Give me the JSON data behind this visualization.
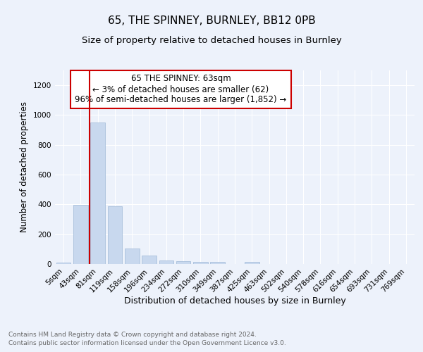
{
  "title1": "65, THE SPINNEY, BURNLEY, BB12 0PB",
  "title2": "Size of property relative to detached houses in Burnley",
  "xlabel": "Distribution of detached houses by size in Burnley",
  "ylabel": "Number of detached properties",
  "categories": [
    "5sqm",
    "43sqm",
    "81sqm",
    "119sqm",
    "158sqm",
    "196sqm",
    "234sqm",
    "272sqm",
    "310sqm",
    "349sqm",
    "387sqm",
    "425sqm",
    "463sqm",
    "502sqm",
    "540sqm",
    "578sqm",
    "616sqm",
    "654sqm",
    "693sqm",
    "731sqm",
    "769sqm"
  ],
  "values": [
    10,
    395,
    950,
    390,
    105,
    55,
    25,
    20,
    12,
    12,
    0,
    12,
    0,
    0,
    0,
    0,
    0,
    0,
    0,
    0,
    0
  ],
  "bar_color": "#c8d8ee",
  "bar_edge_color": "#a8c0dc",
  "red_line_x": 1.5,
  "annotation_text_line1": "65 THE SPINNEY: 63sqm",
  "annotation_text_line2": "← 3% of detached houses are smaller (62)",
  "annotation_text_line3": "96% of semi-detached houses are larger (1,852) →",
  "annotation_box_color": "#ffffff",
  "annotation_box_edge": "#cc0000",
  "red_line_color": "#cc0000",
  "ylim": [
    0,
    1300
  ],
  "yticks": [
    0,
    200,
    400,
    600,
    800,
    1000,
    1200
  ],
  "footnote1": "Contains HM Land Registry data © Crown copyright and database right 2024.",
  "footnote2": "Contains public sector information licensed under the Open Government Licence v3.0.",
  "background_color": "#edf2fb",
  "plot_bg_color": "#edf2fb",
  "title1_fontsize": 11,
  "title2_fontsize": 9.5,
  "xlabel_fontsize": 9,
  "ylabel_fontsize": 8.5,
  "tick_fontsize": 7.5,
  "footnote_fontsize": 6.5,
  "annotation_fontsize": 8.5
}
